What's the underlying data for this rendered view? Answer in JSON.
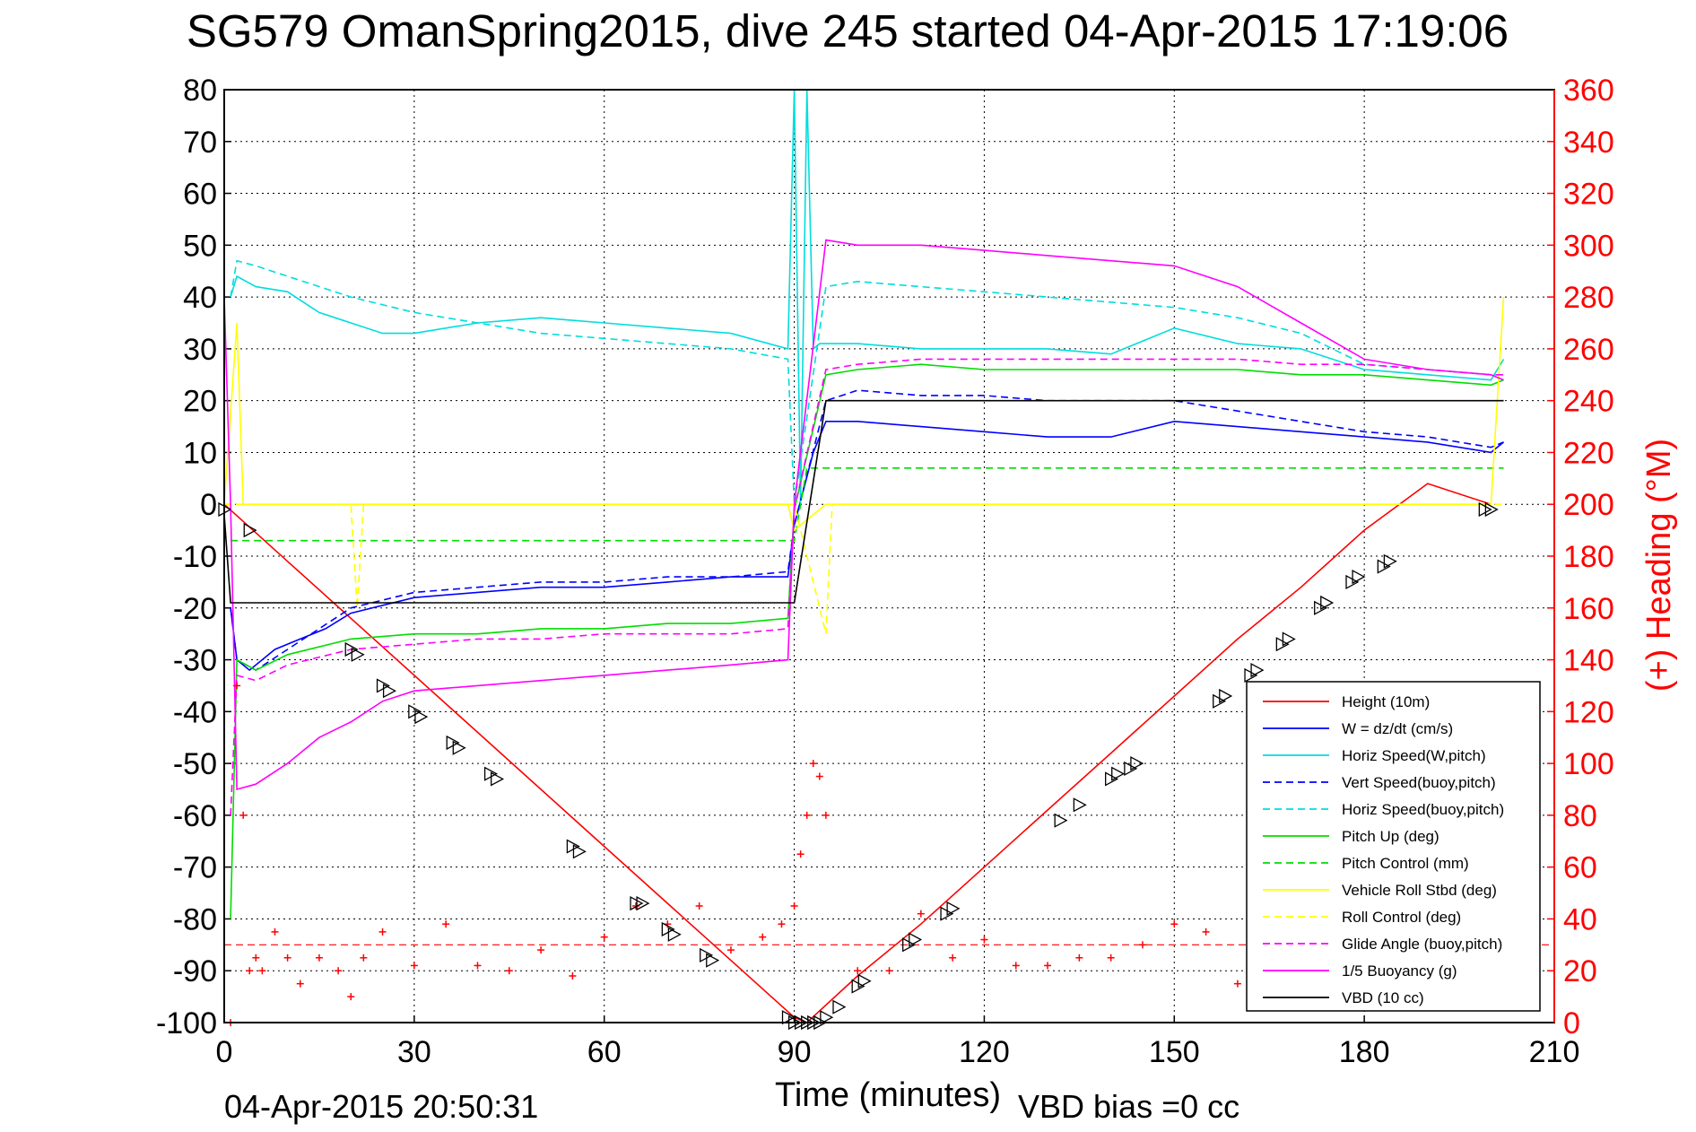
{
  "chart_data": {
    "type": "line",
    "title": "SG579 OmanSpring2015, dive 245 started 04-Apr-2015 17:19:06",
    "xlabel": "Time (minutes)",
    "ylabel": "",
    "y2label": "(+) Heading (°M)",
    "xlim": [
      0,
      210
    ],
    "ylim": [
      -100,
      80
    ],
    "y2lim": [
      0,
      360
    ],
    "xticks": [
      0,
      30,
      60,
      90,
      120,
      150,
      180,
      210
    ],
    "yticks": [
      80,
      70,
      60,
      50,
      40,
      30,
      20,
      10,
      0,
      -10,
      -20,
      -30,
      -40,
      -50,
      -60,
      -70,
      -80,
      -90,
      -100
    ],
    "y2ticks": [
      360,
      340,
      320,
      300,
      280,
      260,
      240,
      220,
      200,
      180,
      160,
      140,
      120,
      100,
      80,
      60,
      40,
      20,
      0
    ],
    "grid": true,
    "legend_position": "bottom-right",
    "footer_date": "04-Apr-2015 20:50:31",
    "footer_note": "VBD bias =0 cc",
    "series": [
      {
        "name": "Height (10m)",
        "color": "#ff0000",
        "style": "solid",
        "x": [
          0,
          10,
          20,
          30,
          40,
          50,
          60,
          70,
          80,
          90,
          92,
          100,
          110,
          120,
          130,
          140,
          150,
          160,
          170,
          180,
          190,
          200
        ],
        "y": [
          0,
          -11,
          -22,
          -33,
          -44,
          -55,
          -66,
          -77,
          -88,
          -99,
          -100,
          -91,
          -81,
          -70,
          -59,
          -48,
          -37,
          -26,
          -16,
          -5,
          4,
          0
        ]
      },
      {
        "name": "W = dz/dt (cm/s)",
        "color": "#0000ff",
        "style": "solid",
        "x": [
          1,
          2,
          4,
          8,
          12,
          16,
          20,
          30,
          40,
          50,
          60,
          70,
          80,
          89,
          90,
          93,
          95,
          100,
          110,
          120,
          130,
          140,
          150,
          160,
          170,
          180,
          190,
          200,
          202
        ],
        "y": [
          -20,
          -30,
          -32,
          -28,
          -26,
          -24,
          -21,
          -18,
          -17,
          -16,
          -16,
          -15,
          -14,
          -14,
          -4,
          10,
          16,
          16,
          15,
          14,
          13,
          13,
          16,
          15,
          14,
          13,
          12,
          10,
          12
        ]
      },
      {
        "name": "Horiz Speed(W,pitch)",
        "color": "#00dddd",
        "style": "solid",
        "x": [
          1,
          2,
          5,
          10,
          15,
          20,
          25,
          30,
          40,
          50,
          60,
          70,
          80,
          89,
          90,
          91,
          92,
          93,
          94,
          95,
          100,
          110,
          120,
          130,
          140,
          150,
          160,
          170,
          180,
          190,
          200,
          202
        ],
        "y": [
          40,
          44,
          42,
          41,
          37,
          35,
          33,
          33,
          35,
          36,
          35,
          34,
          33,
          30,
          80,
          0,
          80,
          30,
          31,
          31,
          31,
          30,
          30,
          30,
          29,
          34,
          31,
          30,
          26,
          25,
          24,
          28
        ]
      },
      {
        "name": "Vert Speed(buoy,pitch)",
        "color": "#0000ff",
        "style": "dashed",
        "x": [
          1,
          2,
          5,
          10,
          20,
          30,
          40,
          50,
          60,
          70,
          80,
          89,
          90,
          95,
          100,
          110,
          120,
          130,
          140,
          150,
          160,
          170,
          180,
          190,
          200,
          202
        ],
        "y": [
          -20,
          -30,
          -32,
          -28,
          -20,
          -17,
          -16,
          -15,
          -15,
          -14,
          -14,
          -13,
          -4,
          20,
          22,
          21,
          21,
          20,
          20,
          20,
          18,
          16,
          14,
          13,
          11,
          12
        ]
      },
      {
        "name": "Horiz Speed(buoy,pitch)",
        "color": "#00dddd",
        "style": "dashed",
        "x": [
          1,
          2,
          5,
          10,
          20,
          30,
          40,
          50,
          60,
          70,
          80,
          89,
          90,
          95,
          100,
          110,
          120,
          130,
          140,
          150,
          160,
          170,
          180,
          190,
          200,
          202
        ],
        "y": [
          40,
          47,
          46,
          44,
          40,
          37,
          35,
          33,
          32,
          31,
          30,
          28,
          0,
          42,
          43,
          42,
          41,
          40,
          39,
          38,
          36,
          33,
          27,
          26,
          25,
          25
        ]
      },
      {
        "name": "Pitch Up (deg)",
        "color": "#00dd00",
        "style": "solid",
        "x": [
          1,
          2,
          5,
          10,
          20,
          30,
          40,
          50,
          60,
          70,
          80,
          89,
          90,
          95,
          100,
          110,
          120,
          130,
          140,
          150,
          160,
          170,
          180,
          190,
          200,
          202
        ],
        "y": [
          -80,
          -30,
          -32,
          -29,
          -26,
          -25,
          -25,
          -24,
          -24,
          -23,
          -23,
          -22,
          -1,
          25,
          26,
          27,
          26,
          26,
          26,
          26,
          26,
          25,
          25,
          24,
          23,
          24
        ]
      },
      {
        "name": "Pitch Control (mm)",
        "color": "#00dd00",
        "style": "dashed",
        "x": [
          1,
          5,
          90,
          92,
          202
        ],
        "y": [
          -7,
          -7,
          -7,
          7,
          7
        ]
      },
      {
        "name": "Vehicle Roll Stbd (deg)",
        "color": "#ffff00",
        "style": "solid",
        "x": [
          0,
          2,
          3,
          5,
          10,
          20,
          30,
          40,
          50,
          60,
          70,
          80,
          89,
          90,
          95,
          100,
          110,
          120,
          130,
          140,
          150,
          160,
          170,
          180,
          190,
          200,
          202
        ],
        "y": [
          0,
          35,
          0,
          0,
          0,
          0,
          0,
          0,
          0,
          0,
          0,
          0,
          0,
          -5,
          0,
          0,
          0,
          0,
          0,
          0,
          0,
          0,
          0,
          0,
          0,
          0,
          40
        ]
      },
      {
        "name": "Roll Control (deg)",
        "color": "#ffff00",
        "style": "dashed",
        "x": [
          0,
          3,
          20,
          21,
          22,
          90,
          95,
          96,
          97,
          202
        ],
        "y": [
          0,
          0,
          0,
          -20,
          0,
          0,
          -25,
          0,
          0,
          0
        ]
      },
      {
        "name": "Glide Angle (buoy,pitch)",
        "color": "#ff00ff",
        "style": "dashed",
        "x": [
          1,
          2,
          5,
          10,
          20,
          30,
          40,
          50,
          60,
          70,
          80,
          89,
          90,
          95,
          100,
          110,
          120,
          130,
          140,
          150,
          160,
          170,
          180,
          190,
          200,
          202
        ],
        "y": [
          -60,
          -33,
          -34,
          -31,
          -28,
          -27,
          -26,
          -26,
          -25,
          -25,
          -25,
          -24,
          -1,
          26,
          27,
          28,
          28,
          28,
          28,
          28,
          28,
          27,
          27,
          26,
          25,
          25
        ]
      },
      {
        "name": "1/5 Buoyancy (g)",
        "color": "#ff00ff",
        "style": "solid",
        "x": [
          0,
          1,
          2,
          5,
          10,
          15,
          20,
          25,
          30,
          40,
          50,
          60,
          70,
          80,
          89,
          90,
          95,
          100,
          110,
          120,
          130,
          140,
          150,
          160,
          170,
          180,
          190,
          200,
          202
        ],
        "y": [
          40,
          0,
          -55,
          -54,
          -50,
          -45,
          -42,
          -38,
          -36,
          -35,
          -34,
          -33,
          -32,
          -31,
          -30,
          0,
          51,
          50,
          50,
          49,
          48,
          47,
          46,
          42,
          35,
          28,
          26,
          25,
          24
        ]
      },
      {
        "name": "VBD (10 cc)",
        "color": "#000000",
        "style": "solid",
        "x": [
          0,
          1,
          2,
          89,
          90,
          95,
          200,
          202
        ],
        "y": [
          -2,
          -19,
          -19,
          -19,
          -19,
          20,
          20,
          20
        ]
      }
    ],
    "markers": {
      "name": "(+) Heading (°M)",
      "color": "#ff0000",
      "symbol": "+",
      "axis": "right",
      "x": [
        1,
        2,
        3,
        4,
        5,
        6,
        8,
        10,
        12,
        15,
        18,
        20,
        22,
        25,
        30,
        35,
        40,
        45,
        50,
        55,
        60,
        65,
        70,
        75,
        80,
        85,
        88,
        90,
        91,
        92,
        93,
        94,
        95,
        100,
        105,
        110,
        115,
        120,
        125,
        130,
        135,
        140,
        145,
        150,
        155,
        160,
        165,
        170,
        175,
        180,
        185,
        190,
        195,
        200
      ],
      "y": [
        0,
        130,
        80,
        20,
        25,
        20,
        35,
        25,
        15,
        25,
        20,
        10,
        25,
        35,
        22,
        38,
        22,
        20,
        28,
        18,
        33,
        45,
        38,
        45,
        28,
        33,
        38,
        45,
        65,
        80,
        100,
        95,
        80,
        20,
        20,
        42,
        25,
        32,
        22,
        22,
        25,
        25,
        30,
        38,
        35,
        15,
        30,
        20,
        25,
        28,
        20,
        22,
        25,
        20
      ]
    },
    "triangles": {
      "color": "#000000",
      "x": [
        0,
        4,
        20,
        21,
        25,
        26,
        30,
        31,
        36,
        37,
        42,
        43,
        55,
        56,
        65,
        66,
        70,
        71,
        76,
        77,
        89,
        90,
        91,
        92,
        93,
        94,
        95,
        97,
        100,
        101,
        108,
        109,
        114,
        115,
        132,
        135,
        140,
        141,
        143,
        144,
        157,
        158,
        162,
        163,
        167,
        168,
        173,
        174,
        178,
        179,
        183,
        184,
        199,
        200
      ],
      "y": [
        -1,
        -5,
        -28,
        -29,
        -35,
        -36,
        -40,
        -41,
        -46,
        -47,
        -52,
        -53,
        -66,
        -67,
        -77,
        -77,
        -82,
        -83,
        -87,
        -88,
        -99,
        -100,
        -100,
        -100,
        -100,
        -100,
        -99,
        -97,
        -93,
        -92,
        -85,
        -84,
        -79,
        -78,
        -61,
        -58,
        -53,
        -52,
        -51,
        -50,
        -38,
        -37,
        -33,
        -32,
        -27,
        -26,
        -20,
        -19,
        -15,
        -14,
        -12,
        -11,
        -1,
        -1
      ]
    }
  }
}
